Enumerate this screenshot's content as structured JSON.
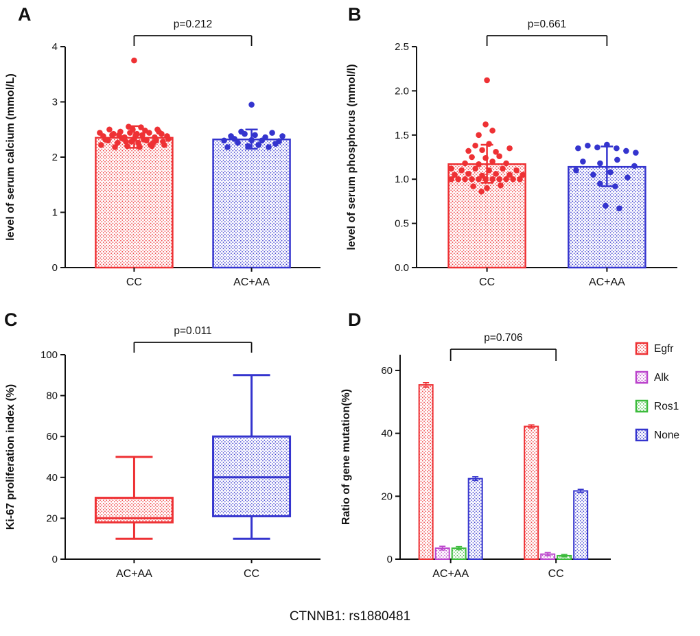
{
  "figure": {
    "caption": "CTNNB1: rs1880481"
  },
  "colors": {
    "red": "#EE3134",
    "blue": "#3434CE",
    "magenta": "#BB44CC",
    "green": "#3CBB3C",
    "axis": "#111111"
  },
  "chart_data": [
    {
      "id": "A",
      "type": "bar",
      "panel_label": "A",
      "ylabel": "level of serum calcium (mmol/L)",
      "ylim": [
        0,
        4
      ],
      "ytick_values": [
        0,
        1,
        2,
        3,
        4
      ],
      "ytick_labels": [
        "0",
        "1",
        "2",
        "3",
        "4"
      ],
      "p_label": "p=0.212",
      "categories": [
        "CC",
        "AC+AA"
      ],
      "bar_colors": [
        "red",
        "blue"
      ],
      "values": [
        2.35,
        2.32
      ],
      "error_low": [
        2.17,
        2.15
      ],
      "error_high": [
        2.56,
        2.5
      ],
      "scatter": [
        [
          [
            0,
            3.75
          ],
          [
            -45,
            2.38
          ],
          [
            -38,
            2.3
          ],
          [
            -30,
            2.42
          ],
          [
            -24,
            2.26
          ],
          [
            -18,
            2.34
          ],
          [
            -12,
            2.28
          ],
          [
            -6,
            2.44
          ],
          [
            0,
            2.33
          ],
          [
            6,
            2.26
          ],
          [
            12,
            2.4
          ],
          [
            18,
            2.3
          ],
          [
            24,
            2.22
          ],
          [
            30,
            2.36
          ],
          [
            36,
            2.46
          ],
          [
            42,
            2.28
          ],
          [
            48,
            2.38
          ],
          [
            -48,
            2.22
          ],
          [
            -36,
            2.5
          ],
          [
            -28,
            2.18
          ],
          [
            -20,
            2.46
          ],
          [
            -10,
            2.2
          ],
          [
            -2,
            2.5
          ],
          [
            8,
            2.18
          ],
          [
            16,
            2.48
          ],
          [
            26,
            2.2
          ],
          [
            34,
            2.5
          ],
          [
            44,
            2.22
          ],
          [
            -42,
            2.32
          ],
          [
            -32,
            2.4
          ],
          [
            -14,
            2.36
          ],
          [
            -4,
            2.28
          ],
          [
            4,
            2.42
          ],
          [
            14,
            2.32
          ],
          [
            22,
            2.44
          ],
          [
            32,
            2.3
          ],
          [
            40,
            2.42
          ],
          [
            50,
            2.33
          ],
          [
            -50,
            2.44
          ],
          [
            -8,
            2.55
          ],
          [
            10,
            2.54
          ],
          [
            2,
            2.38
          ],
          [
            -22,
            2.4
          ],
          [
            28,
            2.26
          ]
        ],
        [
          [
            0,
            2.95
          ],
          [
            -40,
            2.3
          ],
          [
            -30,
            2.38
          ],
          [
            -20,
            2.26
          ],
          [
            -10,
            2.42
          ],
          [
            0,
            2.31
          ],
          [
            10,
            2.22
          ],
          [
            20,
            2.36
          ],
          [
            30,
            2.44
          ],
          [
            40,
            2.29
          ],
          [
            -35,
            2.18
          ],
          [
            -15,
            2.46
          ],
          [
            5,
            2.4
          ],
          [
            25,
            2.18
          ],
          [
            45,
            2.38
          ],
          [
            -25,
            2.33
          ],
          [
            15,
            2.3
          ],
          [
            35,
            2.24
          ],
          [
            -5,
            2.2
          ]
        ]
      ]
    },
    {
      "id": "B",
      "type": "bar",
      "panel_label": "B",
      "ylabel": "level of serum phosphorus (mmol/l)",
      "ylim": [
        0,
        2.5
      ],
      "ytick_values": [
        0,
        0.5,
        1,
        1.5,
        2,
        2.5
      ],
      "ytick_labels": [
        "0.0",
        "0.5",
        "1.0",
        "1.5",
        "2.0",
        "2.5"
      ],
      "p_label": "p=0.661",
      "categories": [
        "CC",
        "AC+AA"
      ],
      "bar_colors": [
        "red",
        "blue"
      ],
      "values": [
        1.17,
        1.14
      ],
      "error_low": [
        0.96,
        0.92
      ],
      "error_high": [
        1.39,
        1.37
      ],
      "scatter": [
        [
          [
            0,
            2.12
          ],
          [
            -52,
            1.0
          ],
          [
            -42,
            1.0
          ],
          [
            -32,
            1.0
          ],
          [
            -22,
            1.0
          ],
          [
            -12,
            1.0
          ],
          [
            -2,
            1.0
          ],
          [
            8,
            1.0
          ],
          [
            18,
            1.0
          ],
          [
            28,
            1.0
          ],
          [
            38,
            1.0
          ],
          [
            48,
            1.0
          ],
          [
            -47,
            1.05
          ],
          [
            -27,
            1.06
          ],
          [
            -7,
            1.04
          ],
          [
            13,
            1.06
          ],
          [
            33,
            1.05
          ],
          [
            -37,
            1.1
          ],
          [
            -17,
            1.12
          ],
          [
            3,
            1.1
          ],
          [
            23,
            1.12
          ],
          [
            43,
            1.1
          ],
          [
            -32,
            1.18
          ],
          [
            -12,
            1.17
          ],
          [
            8,
            1.2
          ],
          [
            28,
            1.18
          ],
          [
            -22,
            1.25
          ],
          [
            -2,
            1.24
          ],
          [
            18,
            1.26
          ],
          [
            -27,
            1.32
          ],
          [
            -7,
            1.33
          ],
          [
            13,
            1.31
          ],
          [
            33,
            1.35
          ],
          [
            -17,
            1.38
          ],
          [
            3,
            1.4
          ],
          [
            -12,
            1.5
          ],
          [
            8,
            1.55
          ],
          [
            -2,
            1.62
          ],
          [
            -20,
            0.92
          ],
          [
            0,
            0.9
          ],
          [
            20,
            0.93
          ],
          [
            -8,
            0.86
          ],
          [
            52,
            1.05
          ],
          [
            -52,
            1.12
          ]
        ],
        [
          [
            -42,
            1.35
          ],
          [
            -28,
            1.38
          ],
          [
            -14,
            1.36
          ],
          [
            0,
            1.39
          ],
          [
            14,
            1.35
          ],
          [
            28,
            1.32
          ],
          [
            42,
            1.3
          ],
          [
            -35,
            1.2
          ],
          [
            -10,
            1.18
          ],
          [
            15,
            1.22
          ],
          [
            40,
            1.15
          ],
          [
            -20,
            1.05
          ],
          [
            5,
            1.08
          ],
          [
            30,
            1.02
          ],
          [
            -10,
            0.95
          ],
          [
            12,
            0.92
          ],
          [
            -2,
            0.7
          ],
          [
            18,
            0.67
          ],
          [
            -45,
            1.1
          ]
        ]
      ]
    },
    {
      "id": "C",
      "type": "box",
      "panel_label": "C",
      "ylabel": "Ki-67 proliferation index (%)",
      "ylim": [
        0,
        100
      ],
      "ytick_values": [
        0,
        20,
        40,
        60,
        80,
        100
      ],
      "ytick_labels": [
        "0",
        "20",
        "40",
        "60",
        "80",
        "100"
      ],
      "p_label": "p=0.011",
      "categories": [
        "AC+AA",
        "CC"
      ],
      "box_colors": [
        "red",
        "blue"
      ],
      "boxes": [
        {
          "min": 10,
          "q1": 18,
          "median": 20,
          "q3": 30,
          "max": 50
        },
        {
          "min": 10,
          "q1": 21,
          "median": 40,
          "q3": 60,
          "max": 90
        }
      ]
    },
    {
      "id": "D",
      "type": "grouped_bar",
      "panel_label": "D",
      "ylabel": "Ratio of gene mutation(%)",
      "ylim": [
        0,
        65
      ],
      "ytick_values": [
        0,
        20,
        40,
        60
      ],
      "ytick_labels": [
        "0",
        "20",
        "40",
        "60"
      ],
      "p_label": "p=0.706",
      "categories": [
        "AC+AA",
        "CC"
      ],
      "legend_position": "right",
      "series": [
        {
          "name": "Egfr",
          "color": "red",
          "values": [
            55.4,
            42.2
          ],
          "errors": [
            0.7,
            0.5
          ]
        },
        {
          "name": "Alk",
          "color": "magenta",
          "values": [
            3.5,
            1.6
          ],
          "errors": [
            0.6,
            0.5
          ]
        },
        {
          "name": "Ros1",
          "color": "green",
          "values": [
            3.5,
            1.1
          ],
          "errors": [
            0.5,
            0.4
          ]
        },
        {
          "name": "None",
          "color": "blue",
          "values": [
            25.6,
            21.7
          ],
          "errors": [
            0.6,
            0.5
          ]
        }
      ]
    }
  ]
}
